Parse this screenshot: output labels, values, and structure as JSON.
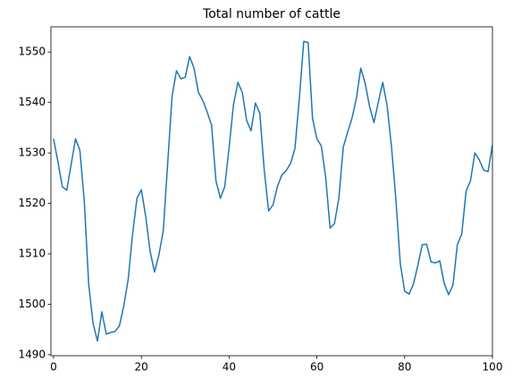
{
  "chart_data": {
    "type": "line",
    "title": "Total number of cattle",
    "x": [
      0,
      1,
      2,
      3,
      4,
      5,
      6,
      7,
      8,
      9,
      10,
      11,
      12,
      13,
      14,
      15,
      16,
      17,
      18,
      19,
      20,
      21,
      22,
      23,
      24,
      25,
      26,
      27,
      28,
      29,
      30,
      31,
      32,
      33,
      34,
      35,
      36,
      37,
      38,
      39,
      40,
      41,
      42,
      43,
      44,
      45,
      46,
      47,
      48,
      49,
      50,
      51,
      52,
      53,
      54,
      55,
      56,
      57,
      58,
      59,
      60,
      61,
      62,
      63,
      64,
      65,
      66,
      67,
      68,
      69,
      70,
      71,
      72,
      73,
      74,
      75,
      76,
      77,
      78,
      79,
      80,
      81,
      82,
      83,
      84,
      85,
      86,
      87,
      88,
      89,
      90,
      91,
      92,
      93,
      94,
      95,
      96,
      97,
      98,
      99,
      100
    ],
    "series": [
      {
        "color": "#1f77b4",
        "values": [
          1532.8,
          1528.2,
          1523.3,
          1522.6,
          1527.7,
          1532.8,
          1530.5,
          1520.4,
          1504,
          1496.2,
          1492.7,
          1498.5,
          1494.1,
          1494.4,
          1494.6,
          1495.7,
          1499.7,
          1504.9,
          1513.9,
          1521,
          1522.7,
          1517.4,
          1510.5,
          1506.4,
          1509.8,
          1514.6,
          1527.9,
          1541.2,
          1546.3,
          1544.7,
          1545,
          1549.1,
          1546.8,
          1542,
          1540.4,
          1538.1,
          1535.5,
          1524.5,
          1521,
          1523.3,
          1531.1,
          1539.6,
          1544,
          1542,
          1536.4,
          1534.4,
          1539.9,
          1537.8,
          1526.6,
          1518.5,
          1519.7,
          1523.3,
          1525.6,
          1526.5,
          1527.9,
          1530.9,
          1540.8,
          1552.1,
          1551.9,
          1536.9,
          1532.8,
          1531.4,
          1525.2,
          1515.1,
          1516,
          1521,
          1531.1,
          1534.1,
          1536.9,
          1540.8,
          1546.8,
          1543.8,
          1539.2,
          1536,
          1540.1,
          1544,
          1539.4,
          1531.2,
          1520.8,
          1508.1,
          1502.6,
          1502,
          1504,
          1507.7,
          1511.8,
          1511.9,
          1508.4,
          1508.2,
          1508.6,
          1504.2,
          1501.9,
          1503.8,
          1511.8,
          1513.9,
          1522.4,
          1524.5,
          1530,
          1528.6,
          1526.6,
          1526.3,
          1531.6
        ]
      }
    ],
    "xlim": [
      -0.6,
      100
    ],
    "ylim": [
      1489.8,
      1555
    ],
    "xticks": [
      0,
      20,
      40,
      60,
      80,
      100
    ],
    "yticks": [
      1490,
      1500,
      1510,
      1520,
      1530,
      1540,
      1550
    ]
  }
}
